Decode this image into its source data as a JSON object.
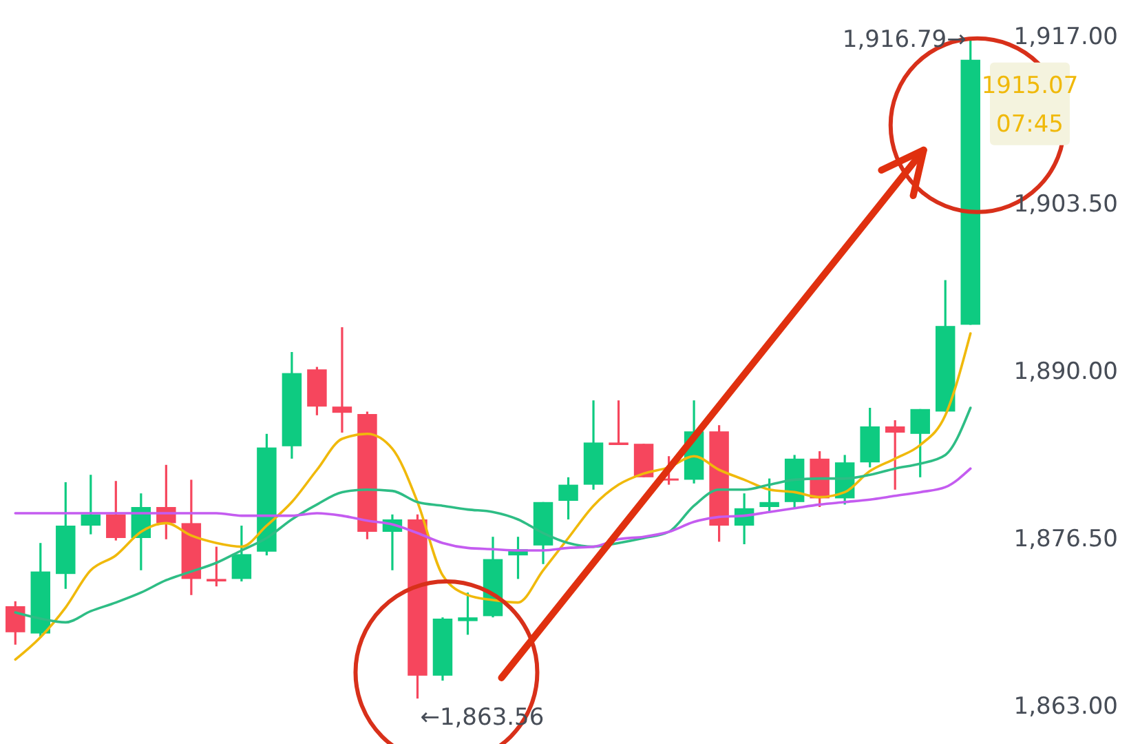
{
  "chart_data": {
    "type": "candlestick",
    "categories": [
      null,
      null,
      null,
      null,
      null,
      null,
      null,
      null,
      null,
      null,
      null,
      null,
      null,
      null,
      null,
      null,
      null,
      null,
      null,
      null,
      null,
      null,
      null,
      null,
      null,
      null,
      null,
      null,
      null,
      null,
      null,
      null,
      null,
      null,
      null,
      null,
      null,
      null,
      null
    ],
    "ohlc": [
      [
        1871.0,
        1871.4,
        1867.9,
        1868.9
      ],
      [
        1868.8,
        1876.1,
        1868.5,
        1873.8
      ],
      [
        1873.6,
        1881.0,
        1872.4,
        1877.5
      ],
      [
        1877.5,
        1881.6,
        1876.8,
        1878.4
      ],
      [
        1878.4,
        1881.1,
        1876.3,
        1876.5
      ],
      [
        1876.5,
        1880.1,
        1873.9,
        1879.0
      ],
      [
        1879.0,
        1882.4,
        1876.4,
        1877.7
      ],
      [
        1877.7,
        1881.2,
        1871.9,
        1873.2
      ],
      [
        1873.2,
        1875.8,
        1872.6,
        1873.0
      ],
      [
        1873.2,
        1877.5,
        1873.0,
        1875.2
      ],
      [
        1875.4,
        1884.9,
        1875.1,
        1883.8
      ],
      [
        1883.9,
        1891.5,
        1882.9,
        1889.8
      ],
      [
        1890.1,
        1890.3,
        1886.4,
        1887.1
      ],
      [
        1887.1,
        1893.5,
        1885.0,
        1886.6
      ],
      [
        1886.5,
        1886.7,
        1876.4,
        1877.0
      ],
      [
        1877.0,
        1878.4,
        1873.9,
        1878.0
      ],
      [
        1878.0,
        1878.4,
        1863.56,
        1865.4
      ],
      [
        1865.4,
        1870.1,
        1865.0,
        1870.0
      ],
      [
        1869.8,
        1872.1,
        1868.7,
        1870.1
      ],
      [
        1870.2,
        1876.6,
        1870.1,
        1874.8
      ],
      [
        1875.1,
        1876.6,
        1873.2,
        1875.6
      ],
      [
        1875.9,
        1879.4,
        1874.4,
        1879.4
      ],
      [
        1879.5,
        1881.4,
        1878.0,
        1880.8
      ],
      [
        1880.8,
        1887.6,
        1880.4,
        1884.2
      ],
      [
        1884.2,
        1887.6,
        1884.0,
        1884.0
      ],
      [
        1884.1,
        1884.1,
        1881.4,
        1881.4
      ],
      [
        1881.3,
        1883.1,
        1880.8,
        1881.2
      ],
      [
        1881.2,
        1887.6,
        1880.9,
        1885.1
      ],
      [
        1885.1,
        1885.6,
        1876.2,
        1877.5
      ],
      [
        1877.5,
        1880.1,
        1876.0,
        1878.9
      ],
      [
        1879.0,
        1881.3,
        1878.6,
        1879.4
      ],
      [
        1879.4,
        1883.2,
        1878.9,
        1882.9
      ],
      [
        1882.9,
        1883.5,
        1879.0,
        1879.7
      ],
      [
        1879.7,
        1883.2,
        1879.2,
        1882.6
      ],
      [
        1882.6,
        1887.0,
        1882.2,
        1885.5
      ],
      [
        1885.5,
        1886.0,
        1880.4,
        1885.0
      ],
      [
        1884.9,
        1886.9,
        1881.4,
        1886.9
      ],
      [
        1886.7,
        1897.3,
        1886.7,
        1893.6
      ],
      [
        1893.7,
        1916.79,
        1893.7,
        1915.07
      ]
    ],
    "colors": [
      "#f6465d",
      "#0ecb81",
      "#0ecb81",
      "#0ecb81",
      "#f6465d",
      "#0ecb81",
      "#f6465d",
      "#f6465d",
      "#f6465d",
      "#0ecb81",
      "#0ecb81",
      "#0ecb81",
      "#f6465d",
      "#f6465d",
      "#f6465d",
      "#0ecb81",
      "#f6465d",
      "#0ecb81",
      "#0ecb81",
      "#0ecb81",
      "#0ecb81",
      "#0ecb81",
      "#0ecb81",
      "#0ecb81",
      "#f6465d",
      "#f6465d",
      "#f6465d",
      "#0ecb81",
      "#f6465d",
      "#0ecb81",
      "#0ecb81",
      "#0ecb81",
      "#f6465d",
      "#0ecb81",
      "#0ecb81",
      "#f6465d",
      "#0ecb81",
      "#0ecb81",
      "#0ecb81"
    ],
    "series": [
      {
        "type": "line",
        "color": "#f0b90b",
        "values": [
          1866.7,
          1868.5,
          1870.9,
          1873.9,
          1875.1,
          1877.0,
          1877.7,
          1876.7,
          1876.1,
          1875.8,
          1877.5,
          1879.4,
          1882.0,
          1884.5,
          1884.9,
          1883.7,
          1879.4,
          1873.5,
          1871.9,
          1871.5,
          1871.3,
          1873.9,
          1876.5,
          1879.1,
          1880.8,
          1881.7,
          1882.2,
          1883.1,
          1882.0,
          1881.2,
          1880.4,
          1880.2,
          1879.8,
          1880.2,
          1881.9,
          1882.9,
          1884.0,
          1886.4,
          1893.0
        ]
      },
      {
        "type": "line",
        "color": "#2ebd85",
        "values": [
          1870.5,
          1870.0,
          1869.7,
          1870.6,
          1871.3,
          1872.1,
          1873.1,
          1873.8,
          1874.5,
          1875.5,
          1876.5,
          1878.0,
          1879.2,
          1880.2,
          1880.4,
          1880.3,
          1879.4,
          1879.1,
          1878.8,
          1878.6,
          1878.0,
          1876.9,
          1876.1,
          1875.8,
          1876.1,
          1876.5,
          1877.0,
          1879.1,
          1880.4,
          1880.4,
          1880.8,
          1881.2,
          1881.3,
          1881.3,
          1881.6,
          1882.1,
          1882.5,
          1883.2,
          1887.0
        ]
      },
      {
        "type": "line",
        "color": "#c45cf0",
        "values": [
          1878.5,
          1878.5,
          1878.5,
          1878.5,
          1878.5,
          1878.5,
          1878.5,
          1878.5,
          1878.5,
          1878.3,
          1878.3,
          1878.3,
          1878.5,
          1878.3,
          1877.9,
          1877.6,
          1876.9,
          1876.1,
          1875.7,
          1875.6,
          1875.5,
          1875.5,
          1875.7,
          1875.8,
          1876.4,
          1876.6,
          1877.0,
          1877.8,
          1878.2,
          1878.3,
          1878.6,
          1878.9,
          1879.2,
          1879.4,
          1879.6,
          1879.9,
          1880.2,
          1880.6,
          1882.1
        ]
      }
    ],
    "ylim": [
      1863,
      1917
    ],
    "yticks": [
      {
        "value": 1863,
        "label": "1,863.00"
      },
      {
        "value": 1876.5,
        "label": "1,876.50"
      },
      {
        "value": 1890,
        "label": "1,890.00"
      },
      {
        "value": 1903.5,
        "label": "1,903.50"
      },
      {
        "value": 1917,
        "label": "1,917.00"
      }
    ],
    "tick_labels": "y",
    "grid": false,
    "annotations": [
      "1,916.79→",
      "←1,863.56",
      "1915.07",
      "07:45"
    ]
  }
}
